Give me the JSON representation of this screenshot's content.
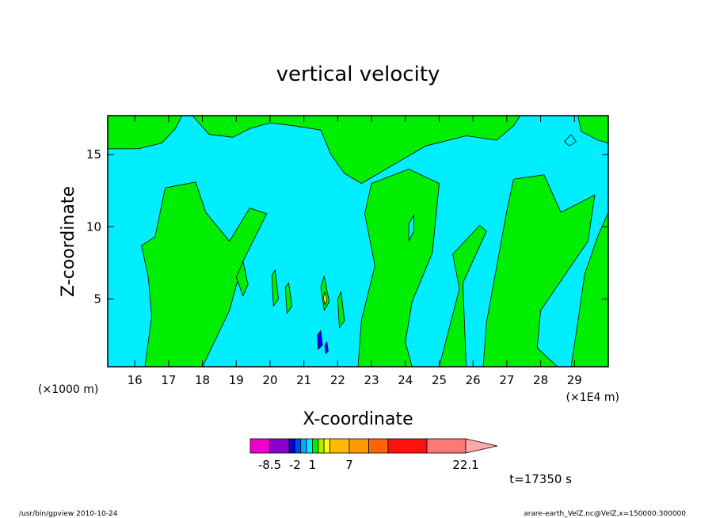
{
  "chart_data": {
    "type": "heatmap",
    "title": "vertical velocity",
    "xlabel": "X-coordinate",
    "ylabel": "Z-coordinate",
    "x_unit_left": "(×1000 m)",
    "x_unit_right": "(×1E4 m)",
    "xlim": [
      15.2,
      30.0
    ],
    "ylim": [
      0.3,
      17.7
    ],
    "x_ticks": [
      16,
      17,
      18,
      19,
      20,
      21,
      22,
      23,
      24,
      25,
      26,
      27,
      28,
      29
    ],
    "x_tick_labels": [
      "16",
      "17",
      "18",
      "19",
      "20",
      "21",
      "22",
      "23",
      "24",
      "25",
      "26",
      "27",
      "28",
      "29"
    ],
    "y_ticks": [
      5,
      10,
      15
    ],
    "y_tick_labels": [
      "5",
      "10",
      "15"
    ],
    "background_level_color": "#00eeff",
    "regions": [
      {
        "level_color": "#00ee00",
        "points": [
          [
            15.2,
            17.7
          ],
          [
            17.4,
            17.7
          ],
          [
            17.2,
            16.8
          ],
          [
            16.8,
            15.8
          ],
          [
            16.1,
            15.4
          ],
          [
            15.2,
            15.4
          ]
        ]
      },
      {
        "level_color": "#00ee00",
        "points": [
          [
            17.7,
            17.7
          ],
          [
            18.2,
            16.4
          ],
          [
            18.9,
            16.2
          ],
          [
            19.4,
            16.8
          ],
          [
            20.0,
            17.2
          ],
          [
            20.7,
            17.0
          ],
          [
            21.5,
            16.7
          ],
          [
            21.8,
            15.0
          ],
          [
            22.2,
            13.7
          ],
          [
            22.7,
            13.0
          ],
          [
            23.8,
            14.5
          ],
          [
            24.6,
            15.6
          ],
          [
            25.8,
            16.3
          ],
          [
            26.7,
            16.0
          ],
          [
            27.2,
            17.0
          ],
          [
            27.4,
            17.7
          ]
        ]
      },
      {
        "level_color": "#00ee00",
        "points": [
          [
            29.1,
            17.7
          ],
          [
            29.2,
            16.6
          ],
          [
            29.7,
            16.0
          ],
          [
            30.0,
            15.8
          ],
          [
            30.0,
            17.7
          ]
        ]
      },
      {
        "level_color": "#00ee00",
        "points": [
          [
            16.3,
            0.3
          ],
          [
            16.5,
            3.8
          ],
          [
            16.4,
            6.5
          ],
          [
            16.2,
            8.7
          ],
          [
            16.6,
            9.3
          ],
          [
            16.9,
            12.7
          ],
          [
            17.8,
            13.1
          ],
          [
            18.1,
            11.0
          ],
          [
            18.8,
            9.0
          ],
          [
            19.4,
            11.3
          ],
          [
            19.9,
            10.9
          ],
          [
            19.2,
            7.6
          ],
          [
            18.8,
            4.2
          ],
          [
            18.0,
            0.3
          ]
        ]
      },
      {
        "level_color": "#00ee00",
        "points": [
          [
            22.6,
            0.3
          ],
          [
            22.7,
            3.5
          ],
          [
            23.1,
            7.3
          ],
          [
            22.8,
            10.9
          ],
          [
            23.0,
            13.0
          ],
          [
            24.1,
            14.0
          ],
          [
            25.0,
            13.0
          ],
          [
            24.8,
            8.2
          ],
          [
            24.2,
            4.8
          ],
          [
            24.0,
            2.0
          ],
          [
            24.2,
            0.3
          ]
        ]
      },
      {
        "level_color": "#00ee00",
        "points": [
          [
            25.0,
            0.3
          ],
          [
            25.6,
            5.7
          ],
          [
            25.4,
            8.1
          ],
          [
            26.2,
            10.1
          ],
          [
            26.4,
            9.7
          ],
          [
            25.7,
            6.1
          ],
          [
            25.8,
            0.3
          ]
        ]
      },
      {
        "level_color": "#00ee00",
        "points": [
          [
            26.3,
            0.3
          ],
          [
            26.4,
            3.4
          ],
          [
            27.0,
            11.1
          ],
          [
            27.2,
            13.3
          ],
          [
            28.1,
            13.6
          ],
          [
            28.6,
            11.0
          ],
          [
            29.6,
            12.2
          ],
          [
            29.4,
            9.0
          ],
          [
            28.7,
            6.6
          ],
          [
            28.0,
            4.2
          ],
          [
            27.9,
            1.6
          ],
          [
            28.5,
            0.3
          ]
        ]
      },
      {
        "level_color": "#00ee00",
        "points": [
          [
            28.9,
            0.3
          ],
          [
            29.1,
            3.4
          ],
          [
            29.3,
            6.7
          ],
          [
            29.7,
            9.4
          ],
          [
            30.0,
            11.0
          ],
          [
            30.0,
            0.3
          ]
        ]
      },
      {
        "level_color": "#00eeff",
        "points": [
          [
            24.1,
            10.2
          ],
          [
            24.25,
            10.8
          ],
          [
            24.25,
            9.7
          ],
          [
            24.1,
            9.0
          ]
        ]
      },
      {
        "level_color": "#00eeff",
        "points": [
          [
            28.7,
            15.9
          ],
          [
            28.9,
            16.4
          ],
          [
            29.05,
            15.9
          ],
          [
            28.85,
            15.6
          ]
        ]
      },
      {
        "level_color": "#00ee00",
        "points": [
          [
            19.0,
            6.5
          ],
          [
            19.2,
            7.6
          ],
          [
            19.35,
            6.0
          ],
          [
            19.2,
            5.2
          ]
        ]
      },
      {
        "level_color": "#00ee00",
        "points": [
          [
            20.05,
            6.6
          ],
          [
            20.15,
            7.0
          ],
          [
            20.25,
            5.0
          ],
          [
            20.1,
            4.5
          ]
        ]
      },
      {
        "level_color": "#00ee00",
        "points": [
          [
            20.45,
            5.8
          ],
          [
            20.55,
            6.1
          ],
          [
            20.65,
            4.5
          ],
          [
            20.5,
            4.0
          ]
        ]
      },
      {
        "level_color": "#00ee00",
        "points": [
          [
            21.5,
            5.8
          ],
          [
            21.6,
            6.6
          ],
          [
            21.75,
            4.8
          ],
          [
            21.6,
            4.2
          ]
        ]
      },
      {
        "level_color": "#00ee00",
        "points": [
          [
            22.0,
            5.0
          ],
          [
            22.1,
            5.5
          ],
          [
            22.2,
            3.5
          ],
          [
            22.05,
            3.0
          ]
        ]
      },
      {
        "level_color": "#ffff00",
        "points": [
          [
            21.58,
            5.1
          ],
          [
            21.62,
            5.5
          ],
          [
            21.68,
            4.9
          ],
          [
            21.62,
            4.6
          ]
        ]
      },
      {
        "level_color": "#0000ff",
        "points": [
          [
            21.4,
            2.5
          ],
          [
            21.5,
            2.8
          ],
          [
            21.55,
            1.8
          ],
          [
            21.42,
            1.5
          ]
        ]
      },
      {
        "level_color": "#0000ff",
        "points": [
          [
            21.62,
            1.8
          ],
          [
            21.68,
            2.0
          ],
          [
            21.72,
            1.4
          ],
          [
            21.65,
            1.2
          ]
        ]
      }
    ],
    "colorbar": {
      "colors": [
        "#ee00cc",
        "#8800cc",
        "#0000cc",
        "#0044ff",
        "#00aaff",
        "#00eeff",
        "#00ee00",
        "#aaee00",
        "#ffff00",
        "#ffbb00",
        "#ff9900",
        "#ff6600",
        "#ff1111",
        "#ff7777"
      ],
      "widths": [
        1,
        1,
        0.3,
        0.3,
        0.3,
        0.3,
        0.3,
        0.3,
        0.3,
        1,
        1,
        1,
        2,
        2
      ],
      "tick_labels": [
        "-8.5",
        "-2",
        "1",
        "7",
        "22.1"
      ],
      "tick_after_index": [
        0,
        2,
        5,
        9,
        13
      ]
    },
    "time_label": "t=17350 s"
  },
  "footer": {
    "left": "/usr/bin/gpview   2010-10-24",
    "right": "arare-earth_VelZ.nc@VelZ,x=150000:300000"
  }
}
